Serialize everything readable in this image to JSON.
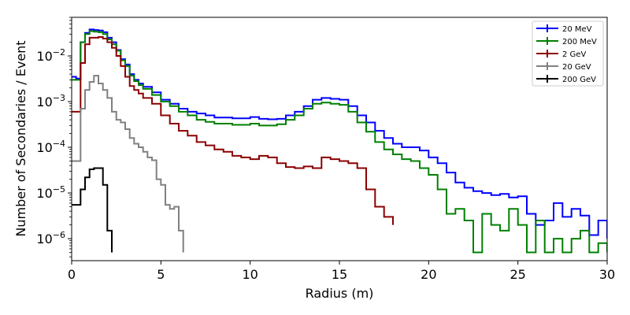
{
  "chart_data": {
    "type": "line",
    "title": "",
    "xlabel": "Radius (m)",
    "ylabel": "Number of Secondaries / Event",
    "xlim": [
      0,
      30
    ],
    "ylim": [
      3.3e-07,
      0.07
    ],
    "yscale": "log",
    "grid": false,
    "legend_position": "top-right",
    "x_ticks": [
      0,
      5,
      10,
      15,
      20,
      25,
      30
    ],
    "x_tick_labels": [
      "0",
      "5",
      "10",
      "15",
      "20",
      "25",
      "30"
    ],
    "y_tick_bases": [
      "10",
      "10",
      "10",
      "10",
      "10"
    ],
    "y_tick_exps": [
      "−6",
      "−5",
      "−4",
      "−3",
      "−2"
    ],
    "y_tick_values": [
      1e-06,
      1e-05,
      0.0001,
      0.001,
      0.01
    ],
    "series": [
      {
        "name": "20 MeV",
        "color": "#0000ff",
        "x": [
          0,
          0.25,
          0.5,
          0.75,
          1,
          1.25,
          1.5,
          1.75,
          2,
          2.25,
          2.5,
          2.75,
          3,
          3.25,
          3.5,
          3.75,
          4,
          4.5,
          5,
          5.5,
          6,
          6.5,
          7,
          7.5,
          8,
          9,
          10,
          10.5,
          11,
          11.5,
          12,
          12.5,
          13,
          13.5,
          14,
          14.5,
          15,
          15.5,
          16,
          16.5,
          17,
          17.5,
          18,
          18.5,
          19,
          19.5,
          20,
          20.5,
          21,
          21.5,
          22,
          22.5,
          23,
          23.5,
          24,
          24.5,
          25,
          25.5,
          26,
          26.5,
          27,
          27.5,
          28,
          28.5,
          29,
          29.5,
          30
        ],
        "y": [
          0.0035,
          0.0032,
          0.02,
          0.032,
          0.038,
          0.037,
          0.036,
          0.033,
          0.025,
          0.02,
          0.0135,
          0.0085,
          0.0065,
          0.004,
          0.003,
          0.0025,
          0.0021,
          0.0016,
          0.0011,
          0.0009,
          0.0007,
          0.0006,
          0.00055,
          0.0005,
          0.00045,
          0.00043,
          0.00046,
          0.00042,
          0.00041,
          0.00042,
          0.0005,
          0.0006,
          0.0008,
          0.0011,
          0.0012,
          0.00115,
          0.0011,
          0.0008,
          0.0005,
          0.00035,
          0.00023,
          0.00016,
          0.00012,
          0.0001,
          0.0001,
          8.5e-05,
          6e-05,
          4.5e-05,
          2.8e-05,
          1.7e-05,
          1.3e-05,
          1.1e-05,
          1e-05,
          9e-06,
          9.5e-06,
          8e-06,
          8.5e-06,
          3.5e-06,
          2e-06,
          2.5e-06,
          6e-06,
          3e-06,
          4.5e-06,
          3.2e-06,
          1.2e-06,
          2.5e-06,
          1e-06
        ]
      },
      {
        "name": "200 MeV",
        "color": "#008000",
        "x": [
          0,
          0.25,
          0.5,
          0.75,
          1,
          1.25,
          1.5,
          1.75,
          2,
          2.25,
          2.5,
          2.75,
          3,
          3.25,
          3.5,
          3.75,
          4,
          4.5,
          5,
          5.5,
          6,
          6.5,
          7,
          7.5,
          8,
          9,
          10,
          10.5,
          11,
          11.5,
          12,
          12.5,
          13,
          13.5,
          14,
          14.5,
          15,
          15.5,
          16,
          16.5,
          17,
          17.5,
          18,
          18.5,
          19,
          19.5,
          20,
          20.5,
          21,
          21.5,
          22,
          22.5,
          23,
          23.5,
          24,
          24.5,
          25,
          25.5,
          26,
          26.5,
          27,
          27.5,
          28,
          28.5,
          29,
          29.5,
          30
        ],
        "y": [
          0.003,
          0.003,
          0.02,
          0.03,
          0.035,
          0.034,
          0.033,
          0.03,
          0.023,
          0.018,
          0.013,
          0.008,
          0.006,
          0.0037,
          0.0028,
          0.0023,
          0.0019,
          0.0014,
          0.001,
          0.0008,
          0.0006,
          0.0005,
          0.0004,
          0.00036,
          0.00033,
          0.00031,
          0.00033,
          0.0003,
          0.0003,
          0.00032,
          0.0004,
          0.0005,
          0.0007,
          0.0009,
          0.00095,
          0.0009,
          0.00085,
          0.0006,
          0.00035,
          0.00022,
          0.00013,
          9e-05,
          7e-05,
          5.5e-05,
          5e-05,
          3.5e-05,
          2.5e-05,
          1.2e-05,
          3.5e-06,
          4.5e-06,
          2.5e-06,
          5e-07,
          3.5e-06,
          2e-06,
          1.5e-06,
          4.5e-06,
          2e-06,
          5e-07,
          2.5e-06,
          5e-07,
          1e-06,
          5e-07,
          1e-06,
          1.5e-06,
          5e-07,
          8e-07,
          5e-07
        ]
      },
      {
        "name": "2 GeV",
        "color": "#8b0000",
        "x": [
          0,
          0.25,
          0.5,
          0.75,
          1,
          1.25,
          1.5,
          1.75,
          2,
          2.25,
          2.5,
          2.75,
          3,
          3.25,
          3.5,
          3.75,
          4,
          4.5,
          5,
          5.5,
          6,
          6.5,
          7,
          7.5,
          8,
          8.5,
          9,
          9.5,
          10,
          10.5,
          11,
          11.5,
          12,
          12.5,
          13,
          13.5,
          14,
          14.5,
          15,
          15.5,
          16,
          16.5,
          17,
          17.5,
          18
        ],
        "y": [
          0.0006,
          0.0006,
          0.007,
          0.018,
          0.025,
          0.025,
          0.026,
          0.024,
          0.02,
          0.015,
          0.01,
          0.006,
          0.0035,
          0.0022,
          0.0018,
          0.0015,
          0.0012,
          0.0009,
          0.0005,
          0.00033,
          0.00023,
          0.00018,
          0.00013,
          0.00011,
          9e-05,
          8e-05,
          6.5e-05,
          6e-05,
          5.5e-05,
          6.5e-05,
          6e-05,
          4.5e-05,
          3.7e-05,
          3.5e-05,
          3.8e-05,
          3.5e-05,
          6e-05,
          5.5e-05,
          5e-05,
          4.5e-05,
          3.5e-05,
          1.2e-05,
          5e-06,
          3e-06,
          2e-06
        ]
      },
      {
        "name": "20 GeV",
        "color": "#808080",
        "x": [
          0,
          0.25,
          0.5,
          0.75,
          1,
          1.25,
          1.5,
          1.75,
          2,
          2.25,
          2.5,
          2.75,
          3,
          3.25,
          3.5,
          3.75,
          4,
          4.25,
          4.5,
          4.75,
          5,
          5.25,
          5.5,
          5.75,
          6,
          6.25
        ],
        "y": [
          5e-05,
          5e-05,
          0.0007,
          0.0018,
          0.0027,
          0.0037,
          0.0025,
          0.0018,
          0.0012,
          0.0006,
          0.0004,
          0.00035,
          0.00025,
          0.00016,
          0.00012,
          0.0001,
          8e-05,
          6e-05,
          5.2e-05,
          2e-05,
          1.5e-05,
          5.5e-06,
          4.5e-06,
          5e-06,
          1.5e-06,
          5e-07
        ]
      },
      {
        "name": "200 GeV",
        "color": "#000000",
        "x": [
          0,
          0.25,
          0.5,
          0.75,
          1,
          1.25,
          1.5,
          1.75,
          2,
          2.25
        ],
        "y": [
          5.5e-06,
          5.5e-06,
          1.2e-05,
          2.2e-05,
          3.3e-05,
          3.5e-05,
          3.5e-05,
          1.5e-05,
          1.5e-06,
          5e-07
        ]
      }
    ]
  }
}
